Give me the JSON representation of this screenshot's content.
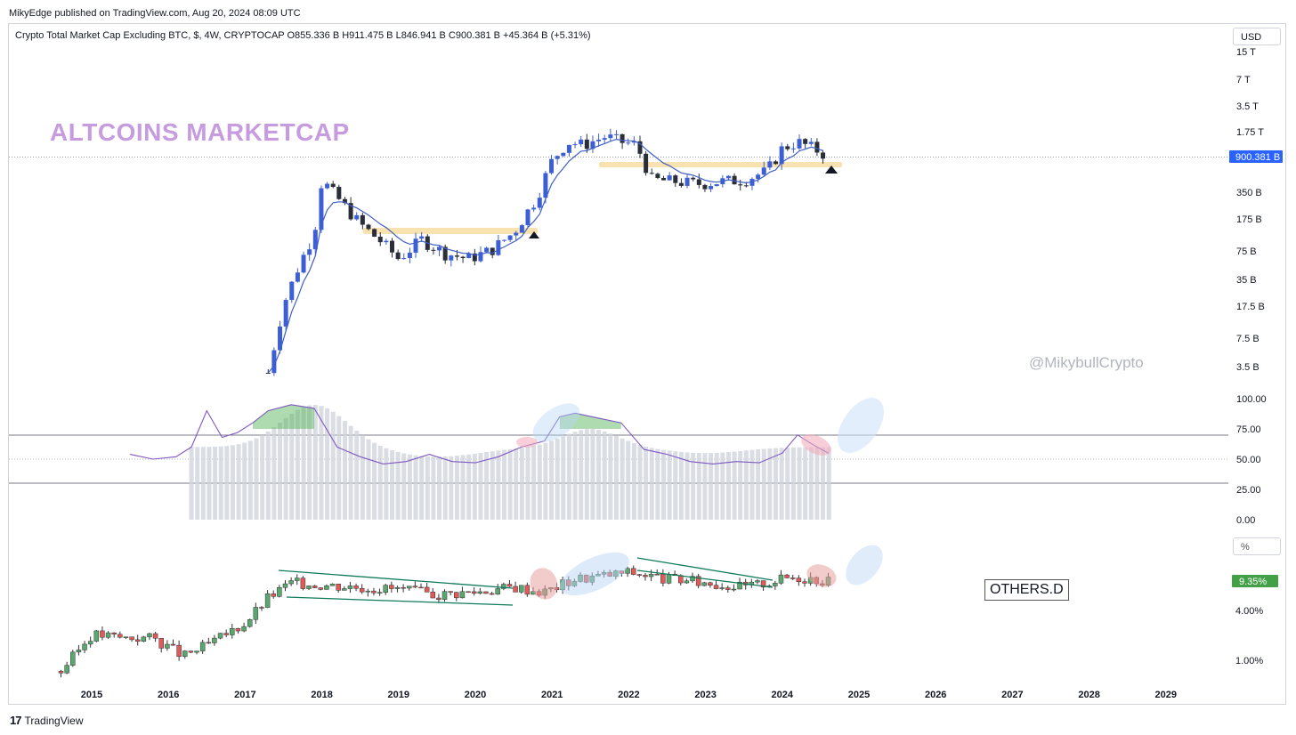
{
  "publisher_line": "MikyEdge published on TradingView.com, Aug 20, 2024 08:09 UTC",
  "legend": {
    "text": "Crypto Total Market Cap Excluding BTC, $, 4W, CRYPTOCAP  O855.336 B  H911.475 B  L846.941 B  C900.381 B  +45.364 B (+5.31%)"
  },
  "currency_button": "USD",
  "percent_button": "%",
  "overlay_title": "ALTCOINS MARKETCAP",
  "watermark": "@MikybullCrypto",
  "others_label": "OTHERS.D",
  "footer": {
    "logo": "17",
    "brand": "TradingView"
  },
  "colors": {
    "bull": "#3c5fd6",
    "bear": "#2a2e39",
    "ema": "#3f5fc4",
    "support": "#f8e2b0",
    "rsi_line": "#7e57c2",
    "others_bull": "#5aa870",
    "others_bear": "#e05a5a",
    "trendline": "#0e7a5a",
    "price_tag": "#2962ff",
    "others_tag": "#43a047"
  },
  "price_axis": {
    "ticks": [
      "15 T",
      "7 T",
      "3.5 T",
      "1.75 T",
      "750 B",
      "350 B",
      "175 B",
      "75 B",
      "35 B",
      "17.5 B",
      "7.5 B",
      "3.5 B"
    ],
    "current_tag": "900.381 B"
  },
  "rsi_axis": {
    "ticks": [
      "100.00",
      "75.00",
      "50.00",
      "25.00",
      "0.00"
    ]
  },
  "others_axis": {
    "ticks": [
      "4.00%",
      "1.00%"
    ],
    "current_tag": "9.35%"
  },
  "time_axis": {
    "ticks": [
      "2015",
      "2016",
      "2017",
      "2018",
      "2019",
      "2020",
      "2021",
      "2022",
      "2023",
      "2024",
      "2025",
      "2026",
      "2027",
      "2028",
      "2029"
    ]
  },
  "chart_data": [
    {
      "type": "candlestick",
      "title": "Crypto Total Market Cap Excluding BTC, $, 4W, CRYPTOCAP",
      "scale": "log",
      "ylabel": "$",
      "ohlc_last": {
        "open": "855.336 B",
        "high": "911.475 B",
        "low": "846.941 B",
        "close": "900.381 B",
        "change": "+45.364 B (+5.31%)"
      },
      "x": [
        2017.3,
        2017.5,
        2017.7,
        2017.9,
        2018.0,
        2018.2,
        2018.5,
        2018.8,
        2019.0,
        2019.3,
        2019.6,
        2019.9,
        2020.2,
        2020.5,
        2020.8,
        2021.0,
        2021.2,
        2021.4,
        2021.7,
        2021.9,
        2022.1,
        2022.3,
        2022.6,
        2022.9,
        2023.2,
        2023.5,
        2023.8,
        2024.0,
        2024.2,
        2024.4,
        2024.6
      ],
      "close_b": [
        3.0,
        18,
        50,
        120,
        480,
        300,
        150,
        90,
        60,
        100,
        70,
        60,
        75,
        120,
        300,
        800,
        1300,
        1200,
        1500,
        1300,
        1200,
        480,
        460,
        430,
        460,
        480,
        600,
        1100,
        1300,
        1100,
        900
      ],
      "support_zones_b": [
        140,
        750
      ]
    },
    {
      "type": "line",
      "title": "RSI",
      "ylim": [
        0,
        100
      ],
      "levels": [
        75,
        50,
        25
      ],
      "x": [
        2015.5,
        2015.8,
        2016.1,
        2016.3,
        2016.5,
        2016.7,
        2016.9,
        2017.1,
        2017.3,
        2017.6,
        2017.9,
        2018.2,
        2018.5,
        2018.8,
        2019.1,
        2019.4,
        2019.7,
        2020.0,
        2020.3,
        2020.6,
        2020.9,
        2021.1,
        2021.3,
        2021.6,
        2021.9,
        2022.2,
        2022.5,
        2022.8,
        2023.1,
        2023.4,
        2023.7,
        2024.0,
        2024.2,
        2024.4,
        2024.6
      ],
      "values": [
        54,
        50,
        52,
        60,
        90,
        68,
        72,
        80,
        90,
        95,
        92,
        60,
        52,
        46,
        48,
        54,
        48,
        47,
        52,
        60,
        65,
        85,
        88,
        84,
        80,
        58,
        54,
        48,
        46,
        48,
        47,
        55,
        70,
        62,
        55
      ]
    },
    {
      "type": "candlestick",
      "title": "OTHERS.D",
      "scale": "log",
      "last_value": "9.35%",
      "x": [
        2014.6,
        2015.0,
        2015.4,
        2015.8,
        2016.2,
        2016.6,
        2017.0,
        2017.3,
        2017.6,
        2018.0,
        2018.5,
        2019.0,
        2019.5,
        2020.0,
        2020.5,
        2020.9,
        2021.3,
        2021.7,
        2022.0,
        2022.5,
        2023.0,
        2023.5,
        2023.8,
        2024.1,
        2024.4,
        2024.6
      ],
      "values_pct": [
        0.8,
        2.2,
        2.0,
        2.0,
        1.2,
        1.8,
        3.0,
        6.0,
        9.0,
        8.5,
        8.0,
        7.5,
        6.5,
        7.0,
        8.0,
        7.0,
        10.0,
        11.0,
        12.0,
        10.0,
        9.0,
        8.0,
        9.0,
        10.5,
        10.2,
        9.35
      ]
    }
  ]
}
